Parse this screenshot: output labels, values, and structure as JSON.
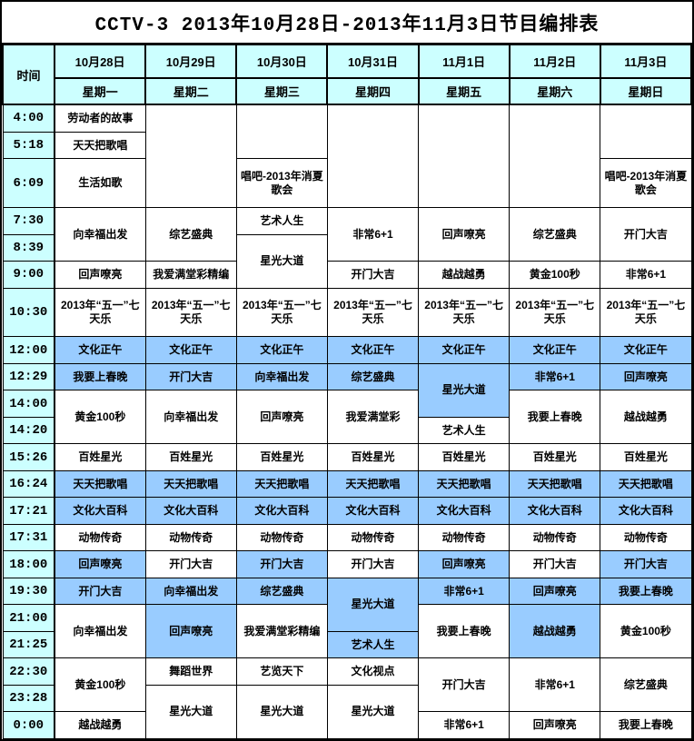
{
  "title": "CCTV-3 2013年10月28日-2013年11月3日节目编排表",
  "colors": {
    "header_bg": "#CCFFFF",
    "highlight_bg": "#99CCFF",
    "border": "#000000",
    "text": "#000000",
    "title_text": "#000000"
  },
  "schedule": {
    "time_header": "时间",
    "days": [
      {
        "date": "10月28日",
        "weekday": "星期一"
      },
      {
        "date": "10月29日",
        "weekday": "星期二"
      },
      {
        "date": "10月30日",
        "weekday": "星期三"
      },
      {
        "date": "10月31日",
        "weekday": "星期四"
      },
      {
        "date": "11月1日",
        "weekday": "星期五"
      },
      {
        "date": "11月2日",
        "weekday": "星期六"
      },
      {
        "date": "11月3日",
        "weekday": "星期日"
      }
    ],
    "times": [
      "4:00",
      "5:18",
      "6:09",
      "7:30",
      "8:39",
      "9:00",
      "10:30",
      "12:00",
      "12:29",
      "14:00",
      "14:20",
      "15:26",
      "16:24",
      "17:21",
      "17:31",
      "18:00",
      "19:30",
      "21:00",
      "21:25",
      "22:30",
      "23:28",
      "0:00"
    ],
    "columns": [
      [
        {
          "text": "劳动者的故事",
          "span": 1,
          "hl": false
        },
        {
          "text": "天天把歌唱",
          "span": 1,
          "hl": false
        },
        {
          "text": "生活如歌",
          "span": 1,
          "hl": false
        },
        {
          "text": "向幸福出发",
          "span": 2,
          "hl": false
        },
        {
          "text": "回声嘹亮",
          "span": 1,
          "hl": false
        },
        {
          "text": "2013年“五一”七天乐",
          "span": 1,
          "hl": false
        },
        {
          "text": "文化正午",
          "span": 1,
          "hl": true
        },
        {
          "text": "我要上春晚",
          "span": 1,
          "hl": true
        },
        {
          "text": "黄金100秒",
          "span": 2,
          "hl": false
        },
        {
          "text": "百姓星光",
          "span": 1,
          "hl": false
        },
        {
          "text": "天天把歌唱",
          "span": 1,
          "hl": true
        },
        {
          "text": "文化大百科",
          "span": 1,
          "hl": true
        },
        {
          "text": "动物传奇",
          "span": 1,
          "hl": false
        },
        {
          "text": "回声嘹亮",
          "span": 1,
          "hl": true
        },
        {
          "text": "开门大吉",
          "span": 1,
          "hl": true
        },
        {
          "text": "向幸福出发",
          "span": 2,
          "hl": false
        },
        {
          "text": "黄金100秒",
          "span": 2,
          "hl": false
        },
        {
          "text": "越战越勇",
          "span": 1,
          "hl": false
        }
      ],
      [
        {
          "text": "",
          "span": 3,
          "hl": false
        },
        {
          "text": "综艺盛典",
          "span": 2,
          "hl": false
        },
        {
          "text": "我爱满堂彩精编",
          "span": 1,
          "hl": false
        },
        {
          "text": "2013年“五一”七天乐",
          "span": 1,
          "hl": false
        },
        {
          "text": "文化正午",
          "span": 1,
          "hl": true
        },
        {
          "text": "开门大吉",
          "span": 1,
          "hl": true
        },
        {
          "text": "向幸福出发",
          "span": 2,
          "hl": false
        },
        {
          "text": "百姓星光",
          "span": 1,
          "hl": false
        },
        {
          "text": "天天把歌唱",
          "span": 1,
          "hl": true
        },
        {
          "text": "文化大百科",
          "span": 1,
          "hl": true
        },
        {
          "text": "动物传奇",
          "span": 1,
          "hl": false
        },
        {
          "text": "开门大吉",
          "span": 1,
          "hl": false
        },
        {
          "text": "向幸福出发",
          "span": 1,
          "hl": true
        },
        {
          "text": "回声嘹亮",
          "span": 2,
          "hl": true
        },
        {
          "text": "舞蹈世界",
          "span": 1,
          "hl": false
        },
        {
          "text": "星光大道",
          "span": 2,
          "hl": false
        }
      ],
      [
        {
          "text": "",
          "span": 2,
          "hl": false
        },
        {
          "text": "唱吧-2013年消夏歌会",
          "span": 1,
          "hl": false
        },
        {
          "text": "艺术人生",
          "span": 1,
          "hl": false
        },
        {
          "text": "星光大道",
          "span": 2,
          "hl": false
        },
        {
          "text": "2013年“五一”七天乐",
          "span": 1,
          "hl": false
        },
        {
          "text": "文化正午",
          "span": 1,
          "hl": true
        },
        {
          "text": "向幸福出发",
          "span": 1,
          "hl": true
        },
        {
          "text": "回声嘹亮",
          "span": 2,
          "hl": false
        },
        {
          "text": "百姓星光",
          "span": 1,
          "hl": false
        },
        {
          "text": "天天把歌唱",
          "span": 1,
          "hl": true
        },
        {
          "text": "文化大百科",
          "span": 1,
          "hl": true
        },
        {
          "text": "动物传奇",
          "span": 1,
          "hl": false
        },
        {
          "text": "开门大吉",
          "span": 1,
          "hl": true
        },
        {
          "text": "综艺盛典",
          "span": 1,
          "hl": true
        },
        {
          "text": "我爱满堂彩精编",
          "span": 2,
          "hl": false
        },
        {
          "text": "艺览天下",
          "span": 1,
          "hl": false
        },
        {
          "text": "星光大道",
          "span": 2,
          "hl": false
        }
      ],
      [
        {
          "text": "",
          "span": 3,
          "hl": false
        },
        {
          "text": "非常6+1",
          "span": 2,
          "hl": false
        },
        {
          "text": "开门大吉",
          "span": 1,
          "hl": false
        },
        {
          "text": "2013年“五一”七天乐",
          "span": 1,
          "hl": false
        },
        {
          "text": "文化正午",
          "span": 1,
          "hl": true
        },
        {
          "text": "综艺盛典",
          "span": 1,
          "hl": true
        },
        {
          "text": "我爱满堂彩",
          "span": 2,
          "hl": false
        },
        {
          "text": "百姓星光",
          "span": 1,
          "hl": false
        },
        {
          "text": "天天把歌唱",
          "span": 1,
          "hl": true
        },
        {
          "text": "文化大百科",
          "span": 1,
          "hl": true
        },
        {
          "text": "动物传奇",
          "span": 1,
          "hl": false
        },
        {
          "text": "开门大吉",
          "span": 1,
          "hl": false
        },
        {
          "text": "星光大道",
          "span": 2,
          "hl": true
        },
        {
          "text": "艺术人生",
          "span": 1,
          "hl": true
        },
        {
          "text": "文化视点",
          "span": 1,
          "hl": false
        },
        {
          "text": "星光大道",
          "span": 2,
          "hl": false
        }
      ],
      [
        {
          "text": "",
          "span": 3,
          "hl": false
        },
        {
          "text": "回声嘹亮",
          "span": 2,
          "hl": false
        },
        {
          "text": "越战越勇",
          "span": 1,
          "hl": false
        },
        {
          "text": "2013年“五一”七天乐",
          "span": 1,
          "hl": false
        },
        {
          "text": "文化正午",
          "span": 1,
          "hl": true
        },
        {
          "text": "星光大道",
          "span": 2,
          "hl": true
        },
        {
          "text": "艺术人生",
          "span": 1,
          "hl": false
        },
        {
          "text": "百姓星光",
          "span": 1,
          "hl": false
        },
        {
          "text": "天天把歌唱",
          "span": 1,
          "hl": true
        },
        {
          "text": "文化大百科",
          "span": 1,
          "hl": true
        },
        {
          "text": "动物传奇",
          "span": 1,
          "hl": false
        },
        {
          "text": "回声嘹亮",
          "span": 1,
          "hl": true
        },
        {
          "text": "非常6+1",
          "span": 1,
          "hl": true
        },
        {
          "text": "我要上春晚",
          "span": 2,
          "hl": false
        },
        {
          "text": "开门大吉",
          "span": 2,
          "hl": false
        },
        {
          "text": "非常6+1",
          "span": 1,
          "hl": false
        }
      ],
      [
        {
          "text": "",
          "span": 3,
          "hl": false
        },
        {
          "text": "综艺盛典",
          "span": 2,
          "hl": false
        },
        {
          "text": "黄金100秒",
          "span": 1,
          "hl": false
        },
        {
          "text": "2013年“五一”七天乐",
          "span": 1,
          "hl": false
        },
        {
          "text": "文化正午",
          "span": 1,
          "hl": true
        },
        {
          "text": "非常6+1",
          "span": 1,
          "hl": true
        },
        {
          "text": "我要上春晚",
          "span": 2,
          "hl": false
        },
        {
          "text": "百姓星光",
          "span": 1,
          "hl": false
        },
        {
          "text": "天天把歌唱",
          "span": 1,
          "hl": true
        },
        {
          "text": "文化大百科",
          "span": 1,
          "hl": true
        },
        {
          "text": "动物传奇",
          "span": 1,
          "hl": false
        },
        {
          "text": "开门大吉",
          "span": 1,
          "hl": false
        },
        {
          "text": "回声嘹亮",
          "span": 1,
          "hl": true
        },
        {
          "text": "越战越勇",
          "span": 2,
          "hl": true
        },
        {
          "text": "非常6+1",
          "span": 2,
          "hl": false
        },
        {
          "text": "回声嘹亮",
          "span": 1,
          "hl": false
        }
      ],
      [
        {
          "text": "",
          "span": 2,
          "hl": false
        },
        {
          "text": "唱吧-2013年消夏歌会",
          "span": 1,
          "hl": false
        },
        {
          "text": "开门大吉",
          "span": 2,
          "hl": false
        },
        {
          "text": "非常6+1",
          "span": 1,
          "hl": false
        },
        {
          "text": "2013年“五一”七天乐",
          "span": 1,
          "hl": false
        },
        {
          "text": "文化正午",
          "span": 1,
          "hl": true
        },
        {
          "text": "回声嘹亮",
          "span": 1,
          "hl": true
        },
        {
          "text": "越战越勇",
          "span": 2,
          "hl": false
        },
        {
          "text": "百姓星光",
          "span": 1,
          "hl": false
        },
        {
          "text": "天天把歌唱",
          "span": 1,
          "hl": true
        },
        {
          "text": "文化大百科",
          "span": 1,
          "hl": true
        },
        {
          "text": "动物传奇",
          "span": 1,
          "hl": false
        },
        {
          "text": "开门大吉",
          "span": 1,
          "hl": true
        },
        {
          "text": "我要上春晚",
          "span": 1,
          "hl": true
        },
        {
          "text": "黄金100秒",
          "span": 2,
          "hl": false
        },
        {
          "text": "综艺盛典",
          "span": 2,
          "hl": false
        },
        {
          "text": "我要上春晚",
          "span": 1,
          "hl": false
        }
      ]
    ]
  }
}
